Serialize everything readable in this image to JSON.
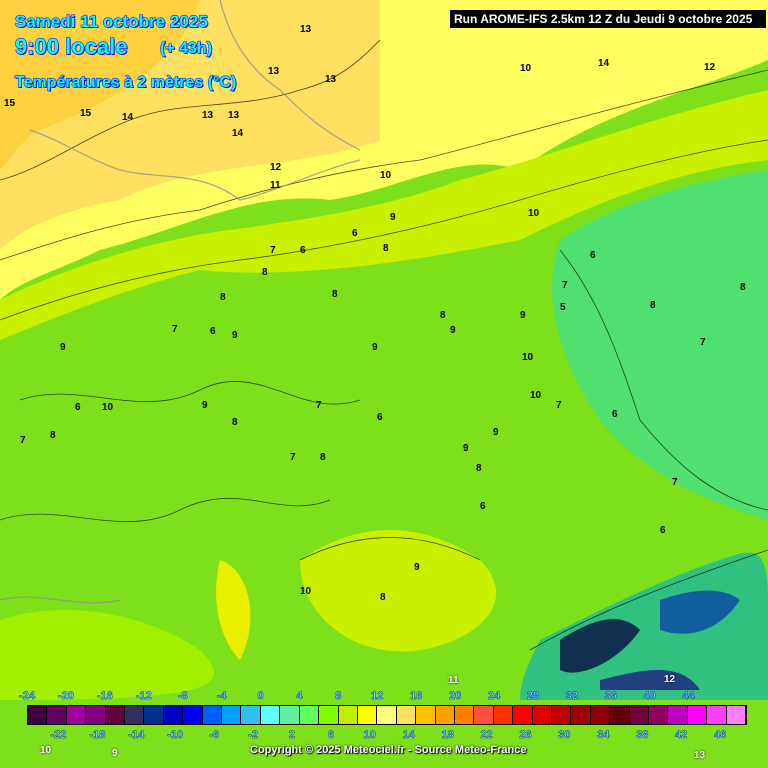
{
  "header": {
    "date": "Samedi 11 octobre 2025",
    "time": "9:00 locale",
    "lead": "(+ 43h)",
    "variable": "Températures à 2 mètres (°C)",
    "run": "Run AROME-IFS 2.5km 12 Z du Jeudi 9 octobre 2025"
  },
  "scale": {
    "top_labels": [
      "-24",
      "-20",
      "-16",
      "-12",
      "-8",
      "-4",
      "0",
      "4",
      "8",
      "12",
      "16",
      "20",
      "24",
      "28",
      "32",
      "36",
      "40",
      "44"
    ],
    "bottom_labels": [
      "-22",
      "-18",
      "-14",
      "-10",
      "-6",
      "-2",
      "2",
      "6",
      "10",
      "14",
      "18",
      "22",
      "26",
      "30",
      "34",
      "38",
      "42",
      "46"
    ],
    "colors": [
      "#400040",
      "#600060",
      "#a000a0",
      "#800080",
      "#600040",
      "#303060",
      "#003090",
      "#0000c0",
      "#0000ff",
      "#0060ff",
      "#00a0ff",
      "#30c0f0",
      "#60ffff",
      "#60f0a0",
      "#60ff60",
      "#80ff00",
      "#c0f000",
      "#ffff00",
      "#ffff80",
      "#ffe060",
      "#ffc000",
      "#ffa000",
      "#ff8000",
      "#ff5040",
      "#ff3000",
      "#ff0000",
      "#e00000",
      "#c00000",
      "#a00000",
      "#900000",
      "#600000",
      "#700040",
      "#900060",
      "#c000c0",
      "#ff00ff",
      "#ff40ff",
      "#ff80ff"
    ]
  },
  "map_labels": [
    "15",
    "15",
    "14",
    "13",
    "13",
    "13",
    "13",
    "14",
    "13",
    "12",
    "11",
    "10",
    "10",
    "14",
    "11",
    "12",
    "9",
    "10",
    "8",
    "7",
    "6",
    "6",
    "8",
    "8",
    "9",
    "7",
    "6",
    "9",
    "8",
    "8",
    "9",
    "10",
    "7",
    "6",
    "5",
    "9",
    "8",
    "7",
    "8",
    "9",
    "10",
    "7",
    "6",
    "8",
    "9",
    "8",
    "7",
    "6",
    "9",
    "8",
    "7",
    "6",
    "10",
    "9",
    "8",
    "7",
    "6",
    "8",
    "9",
    "10",
    "6",
    "7",
    "12",
    "13",
    "9",
    "10"
  ],
  "copyright": "Copyright © 2025 Meteociel.fr - Source Meteo-France"
}
